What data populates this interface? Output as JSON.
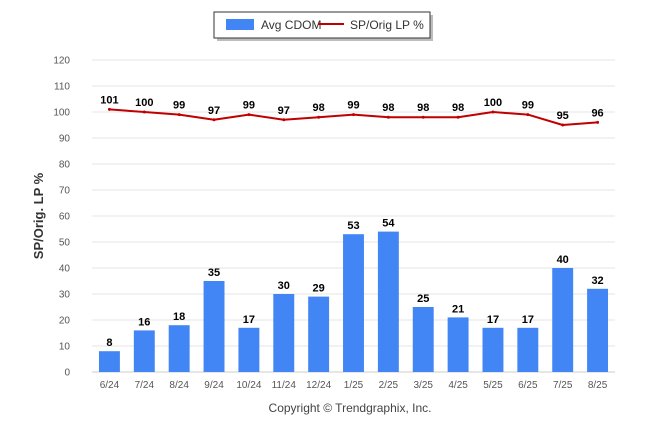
{
  "chart_data": {
    "type": "bar",
    "categories": [
      "6/24",
      "7/24",
      "8/24",
      "9/24",
      "10/24",
      "11/24",
      "12/24",
      "1/25",
      "2/25",
      "3/25",
      "4/25",
      "5/25",
      "6/25",
      "7/25",
      "8/25"
    ],
    "series": [
      {
        "name": "Avg CDOM",
        "type": "bar",
        "color": "#4285f4",
        "values": [
          8,
          16,
          18,
          35,
          17,
          30,
          29,
          53,
          54,
          25,
          21,
          17,
          17,
          40,
          32
        ]
      },
      {
        "name": "SP/Orig LP %",
        "type": "line",
        "color": "#c00000",
        "values": [
          101,
          100,
          99,
          97,
          99,
          97,
          98,
          99,
          98,
          98,
          98,
          100,
          99,
          95,
          96
        ]
      }
    ],
    "title": "",
    "xlabel": "",
    "ylabel": "SP/Orig. LP %",
    "ylim": [
      0,
      120
    ],
    "yticks": [
      0,
      10,
      20,
      30,
      40,
      50,
      60,
      70,
      80,
      90,
      100,
      110,
      120
    ],
    "grid": true,
    "legend_position": "top-center",
    "credit": "Copyright © Trendgraphix, Inc."
  }
}
